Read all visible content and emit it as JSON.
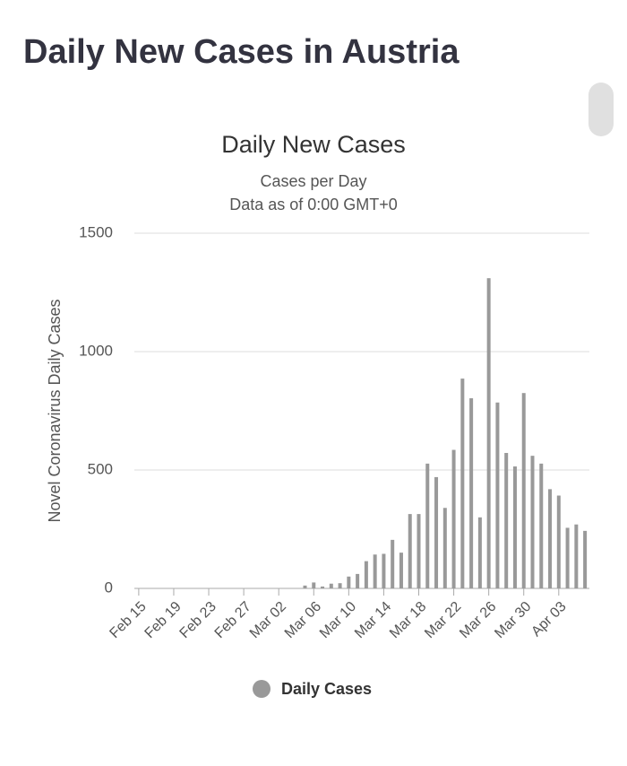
{
  "page_title": "Daily New Cases in Austria",
  "chart_data": {
    "type": "bar",
    "title": "Daily New Cases",
    "subtitle": [
      "Cases per Day",
      "Data as of 0:00 GMT+0"
    ],
    "y_label": "Novel Coronavirus Daily Cases",
    "categories": [
      "Feb 15",
      null,
      null,
      null,
      "Feb 19",
      null,
      null,
      null,
      "Feb 23",
      null,
      null,
      null,
      "Feb 27",
      null,
      null,
      null,
      "Mar 02",
      null,
      null,
      null,
      "Mar 06",
      null,
      null,
      null,
      "Mar 10",
      null,
      null,
      null,
      "Mar 14",
      null,
      null,
      null,
      "Mar 18",
      null,
      null,
      null,
      "Mar 22",
      null,
      null,
      null,
      "Mar 26",
      null,
      null,
      null,
      "Mar 30",
      null,
      null,
      null,
      "Apr 03",
      null,
      null,
      null
    ],
    "series": [
      {
        "name": "Daily Cases",
        "color": "#999999",
        "values": [
          0,
          0,
          0,
          0,
          0,
          0,
          0,
          0,
          0,
          0,
          0,
          0,
          0,
          0,
          0,
          0,
          0,
          0,
          0,
          12,
          25,
          8,
          20,
          22,
          50,
          61,
          115,
          143,
          146,
          205,
          151,
          314,
          314,
          527,
          470,
          340,
          585,
          886,
          803,
          300,
          1310,
          785,
          572,
          515,
          825,
          560,
          527,
          419,
          392,
          256,
          270,
          243
        ]
      }
    ],
    "ylim": [
      0,
      1500
    ],
    "yticks": [
      0,
      500,
      1000,
      1500
    ],
    "grid": true
  }
}
